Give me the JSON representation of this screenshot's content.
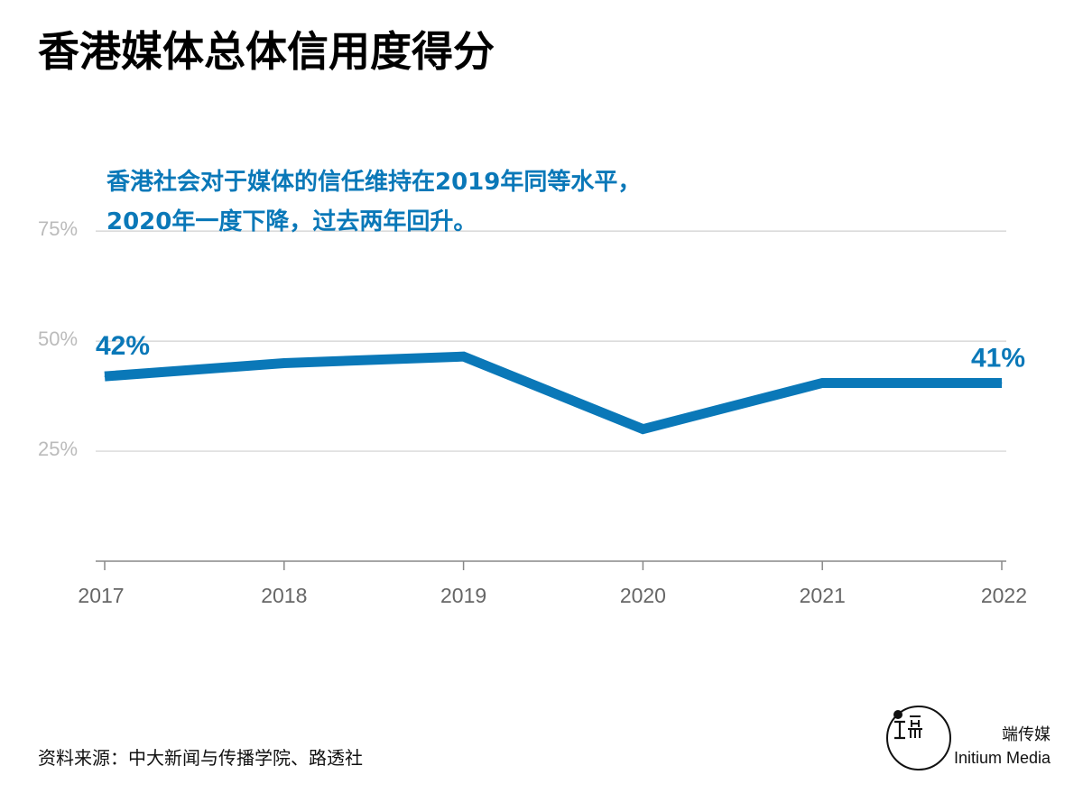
{
  "title": "香港媒体总体信用度得分",
  "annotation": {
    "line1": "香港社会对于媒体的信任维持在2019年同等水平，",
    "line2": "2020年一度下降，过去两年回升。"
  },
  "colors": {
    "line": "#0a78b8",
    "grid": "#d0d0d0",
    "axis": "#888888",
    "ytick": "#bbbbbb",
    "xtick": "#666666",
    "accent": "#0a78b8"
  },
  "chart_data": {
    "type": "line",
    "title": "香港媒体总体信用度得分",
    "xlabel": "",
    "ylabel": "",
    "categories": [
      "2017",
      "2018",
      "2019",
      "2020",
      "2021",
      "2022"
    ],
    "series": [
      {
        "name": "总体信用度得分",
        "values": [
          42,
          45,
          46.5,
          30,
          40.5,
          40.5
        ]
      }
    ],
    "yticks": [
      25,
      50,
      75
    ],
    "ytick_labels": [
      "25%",
      "50%",
      "75%"
    ],
    "ylim": [
      0,
      82
    ],
    "grid": true,
    "data_labels": [
      {
        "index": 0,
        "text": "42%"
      },
      {
        "index": 5,
        "text": "41%"
      }
    ]
  },
  "source": "资料来源：中大新闻与传播学院、路透社",
  "logo": {
    "icon": "initium-logo-icon",
    "cn": "端传媒",
    "en": "Initium Media"
  }
}
